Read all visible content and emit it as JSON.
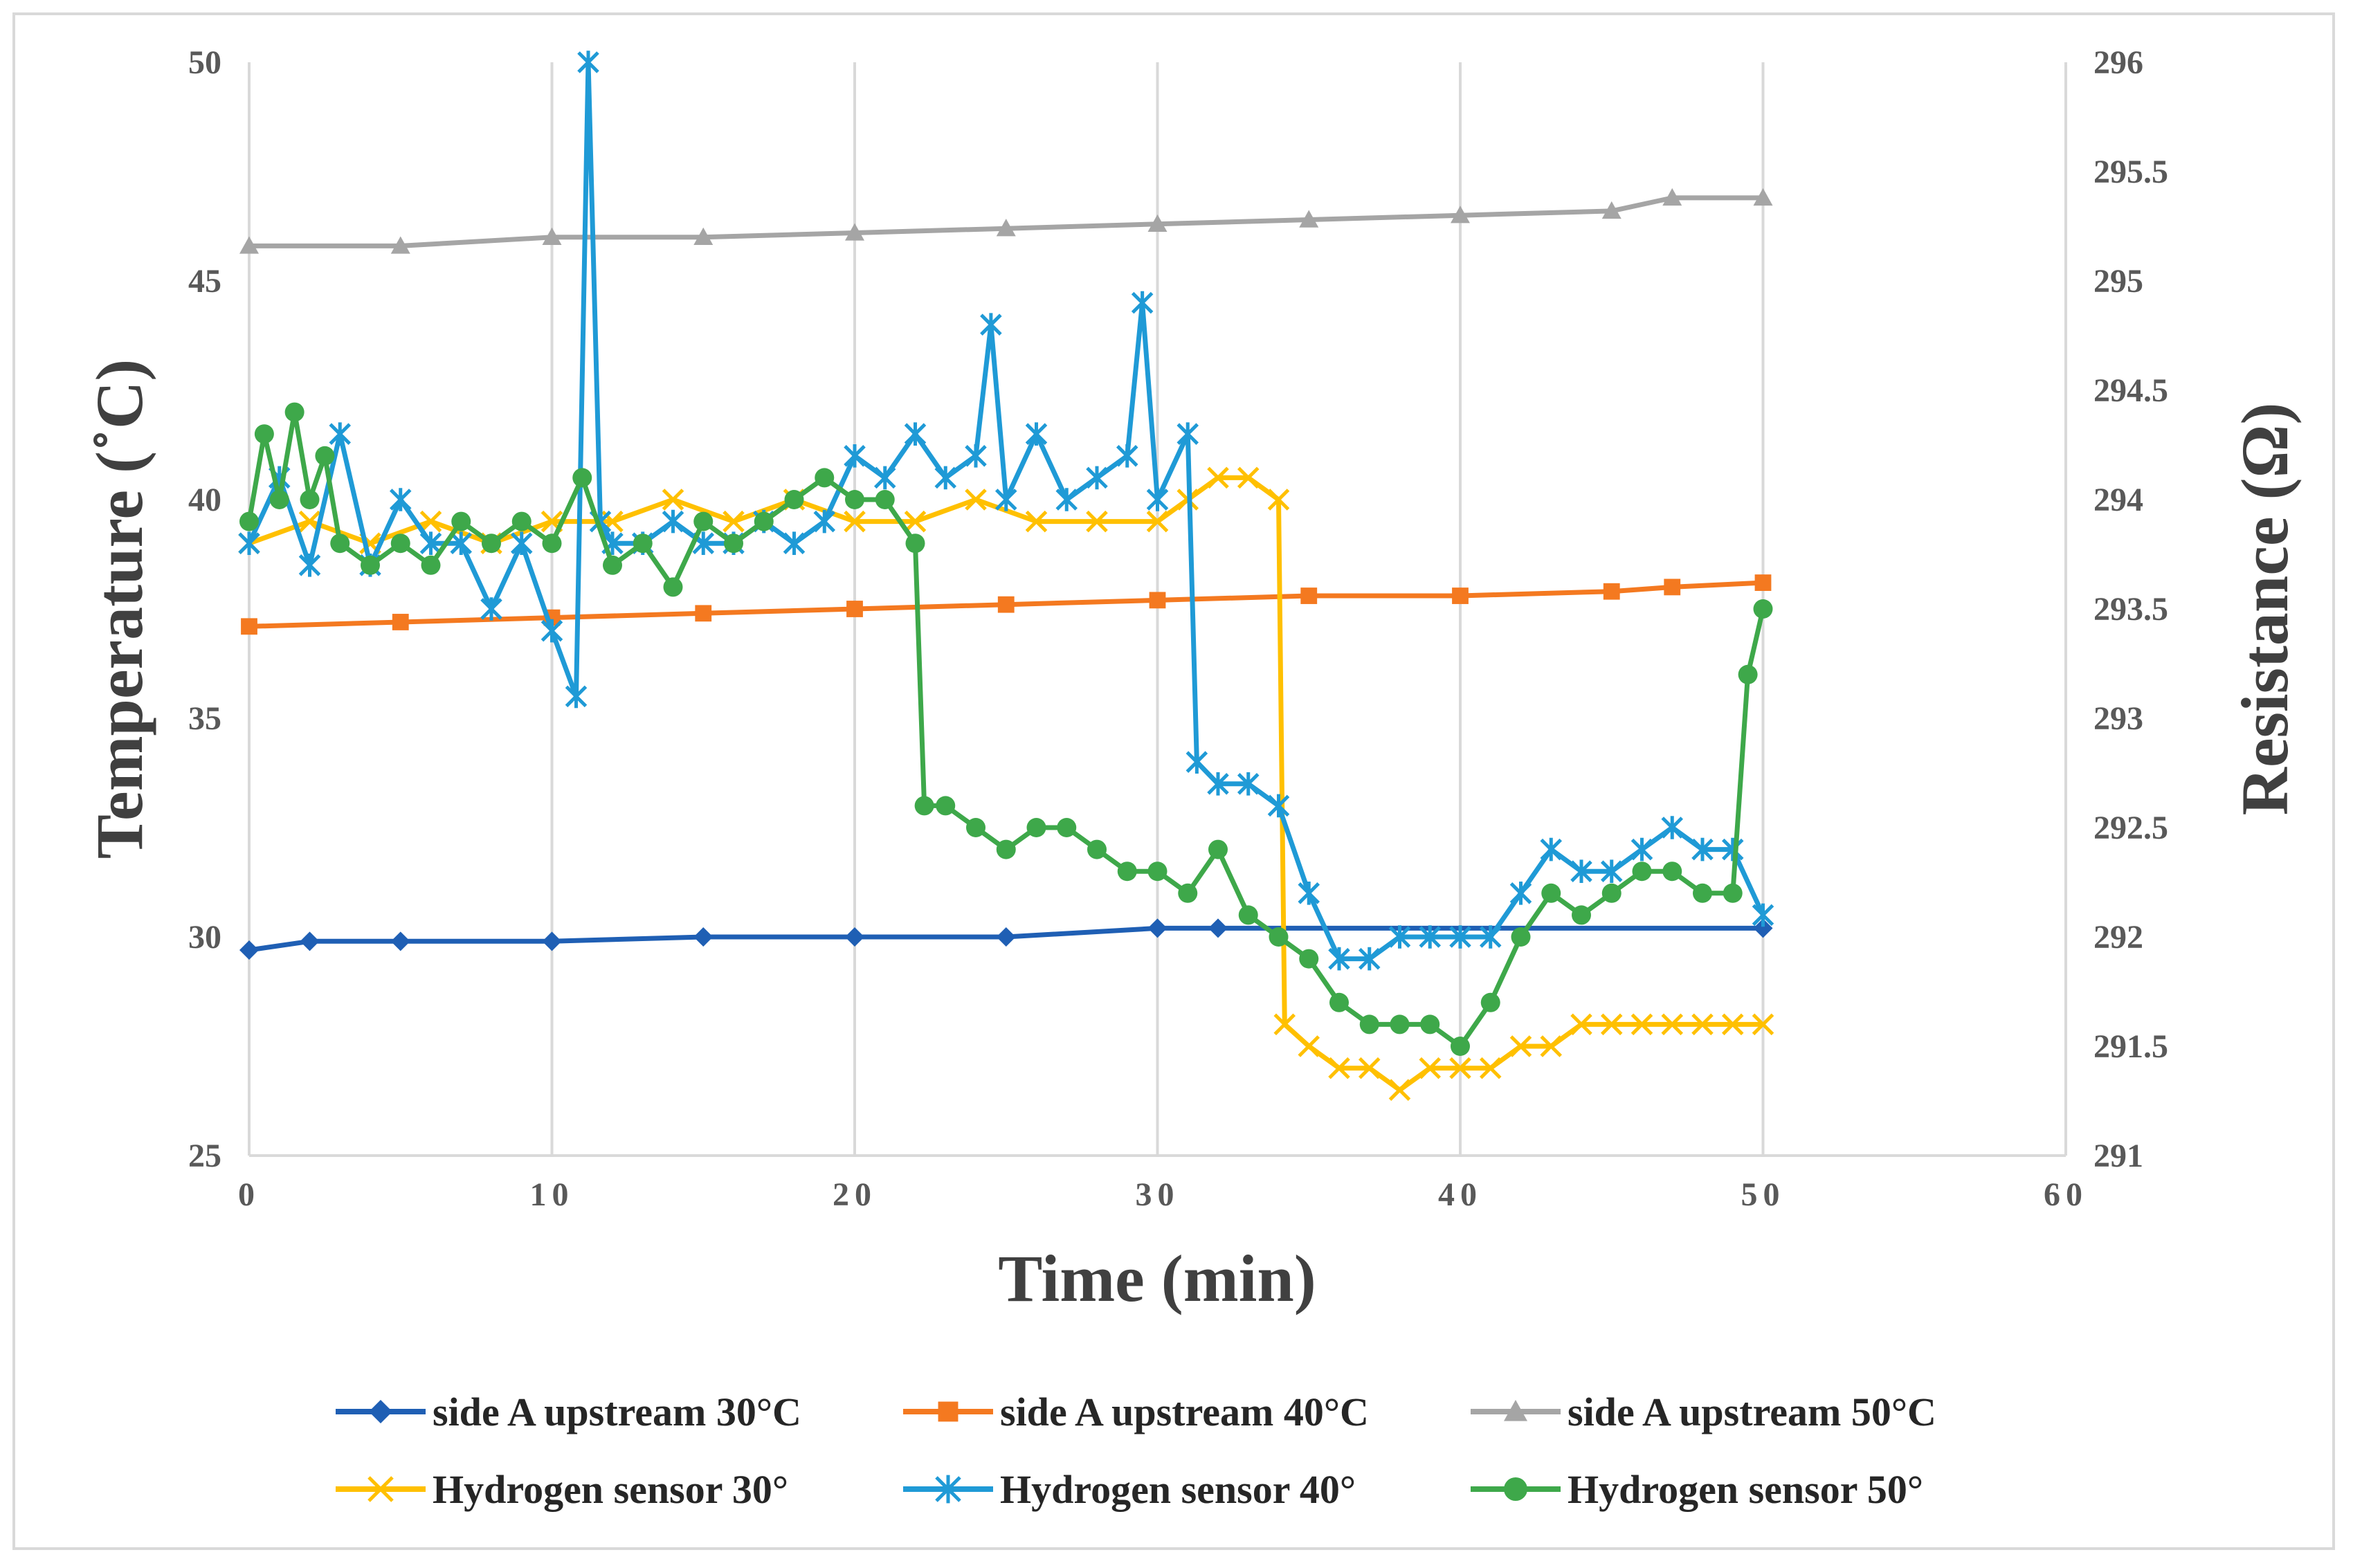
{
  "chart_data": {
    "type": "line",
    "xlabel": "Time (min)",
    "ylabel": "Temperature (˚C)",
    "y2label": "Resistance (Ω)",
    "xlim": [
      0,
      60
    ],
    "ylim": [
      25,
      50
    ],
    "y2lim": [
      291,
      296
    ],
    "x_ticks": [
      "0",
      "10",
      "20",
      "30",
      "40",
      "50",
      "60"
    ],
    "y_ticks": [
      "25",
      "30",
      "35",
      "40",
      "45",
      "50"
    ],
    "y2_ticks": [
      "291",
      "291.5",
      "292",
      "292.5",
      "293",
      "293.5",
      "294",
      "294.5",
      "295",
      "295.5",
      "296"
    ],
    "grid": "vertical",
    "legend_position": "bottom",
    "series": [
      {
        "name": "side A upstream 30°C",
        "axis": "left",
        "color": "#1f5fb4",
        "marker": "diamond",
        "x": [
          0,
          2,
          5,
          10,
          15,
          20,
          25,
          30,
          32,
          50
        ],
        "y": [
          29.7,
          29.9,
          29.9,
          29.9,
          30.0,
          30.0,
          30.0,
          30.2,
          30.2,
          30.2
        ]
      },
      {
        "name": "side A upstream 40°C",
        "axis": "left",
        "color": "#f47920",
        "marker": "square",
        "x": [
          0,
          5,
          10,
          15,
          20,
          25,
          30,
          35,
          40,
          45,
          47,
          50
        ],
        "y": [
          37.1,
          37.2,
          37.3,
          37.4,
          37.5,
          37.6,
          37.7,
          37.8,
          37.8,
          37.9,
          38.0,
          38.1
        ]
      },
      {
        "name": "side A upstream 50°C",
        "axis": "left",
        "color": "#a5a5a5",
        "marker": "triangle",
        "x": [
          0,
          5,
          10,
          15,
          20,
          25,
          30,
          35,
          40,
          45,
          47,
          50
        ],
        "y": [
          45.8,
          45.8,
          46.0,
          46.0,
          46.1,
          46.2,
          46.3,
          46.4,
          46.5,
          46.6,
          46.9,
          46.9
        ]
      },
      {
        "name": "Hydrogen sensor 30°",
        "axis": "right",
        "color": "#ffc000",
        "marker": "x",
        "x": [
          0,
          2,
          4,
          6,
          8,
          10,
          12,
          14,
          16,
          18,
          20,
          22,
          24,
          26,
          28,
          30,
          31,
          32,
          33,
          34,
          34.2,
          35,
          36,
          37,
          38,
          39,
          40,
          41,
          42,
          43,
          44,
          45,
          46,
          47,
          48,
          49,
          50
        ],
        "y": [
          293.8,
          293.9,
          293.8,
          293.9,
          293.8,
          293.9,
          293.9,
          294.0,
          293.9,
          294.0,
          293.9,
          293.9,
          294.0,
          293.9,
          293.9,
          293.9,
          294.0,
          294.1,
          294.1,
          294.0,
          291.6,
          291.5,
          291.4,
          291.4,
          291.3,
          291.4,
          291.4,
          291.4,
          291.5,
          291.5,
          291.6,
          291.6,
          291.6,
          291.6,
          291.6,
          291.6,
          291.6
        ]
      },
      {
        "name": "Hydrogen sensor 40°",
        "axis": "right",
        "color": "#1f9ad6",
        "marker": "asterisk",
        "x": [
          0,
          1,
          2,
          3,
          4,
          5,
          6,
          7,
          8,
          9,
          10,
          10.8,
          11.2,
          11.6,
          12,
          13,
          14,
          15,
          16,
          17,
          18,
          19,
          20,
          21,
          22,
          23,
          24,
          24.5,
          25,
          26,
          27,
          28,
          29,
          29.5,
          30,
          31,
          31.3,
          32,
          33,
          34,
          35,
          36,
          37,
          38,
          39,
          40,
          41,
          42,
          43,
          44,
          45,
          46,
          47,
          48,
          49,
          50
        ],
        "y": [
          293.8,
          294.1,
          293.7,
          294.3,
          293.7,
          294.0,
          293.8,
          293.8,
          293.5,
          293.8,
          293.4,
          293.1,
          296.0,
          293.9,
          293.8,
          293.8,
          293.9,
          293.8,
          293.8,
          293.9,
          293.8,
          293.9,
          294.2,
          294.1,
          294.3,
          294.1,
          294.2,
          294.8,
          294.0,
          294.3,
          294.0,
          294.1,
          294.2,
          294.9,
          294.0,
          294.3,
          292.8,
          292.7,
          292.7,
          292.6,
          292.2,
          291.9,
          291.9,
          292.0,
          292.0,
          292.0,
          292.0,
          292.2,
          292.4,
          292.3,
          292.3,
          292.4,
          292.5,
          292.4,
          292.4,
          292.1
        ]
      },
      {
        "name": "Hydrogen sensor 50°",
        "axis": "right",
        "color": "#3ea84a",
        "marker": "circle",
        "x": [
          0,
          0.5,
          1,
          1.5,
          2,
          2.5,
          3,
          4,
          5,
          6,
          7,
          8,
          9,
          10,
          11,
          12,
          13,
          14,
          15,
          16,
          17,
          18,
          19,
          20,
          21,
          22,
          22.3,
          23,
          24,
          25,
          26,
          27,
          28,
          29,
          30,
          31,
          32,
          33,
          34,
          35,
          36,
          37,
          38,
          39,
          40,
          41,
          42,
          43,
          44,
          45,
          46,
          47,
          48,
          49,
          49.5,
          50
        ],
        "y": [
          293.9,
          294.3,
          294.0,
          294.4,
          294.0,
          294.2,
          293.8,
          293.7,
          293.8,
          293.7,
          293.9,
          293.8,
          293.9,
          293.8,
          294.1,
          293.7,
          293.8,
          293.6,
          293.9,
          293.8,
          293.9,
          294.0,
          294.1,
          294.0,
          294.0,
          293.8,
          292.6,
          292.6,
          292.5,
          292.4,
          292.5,
          292.5,
          292.4,
          292.3,
          292.3,
          292.2,
          292.4,
          292.1,
          292.0,
          291.9,
          291.7,
          291.6,
          291.6,
          291.6,
          291.5,
          291.7,
          292.0,
          292.2,
          292.1,
          292.2,
          292.3,
          292.3,
          292.2,
          292.2,
          293.2,
          293.5
        ]
      }
    ]
  }
}
